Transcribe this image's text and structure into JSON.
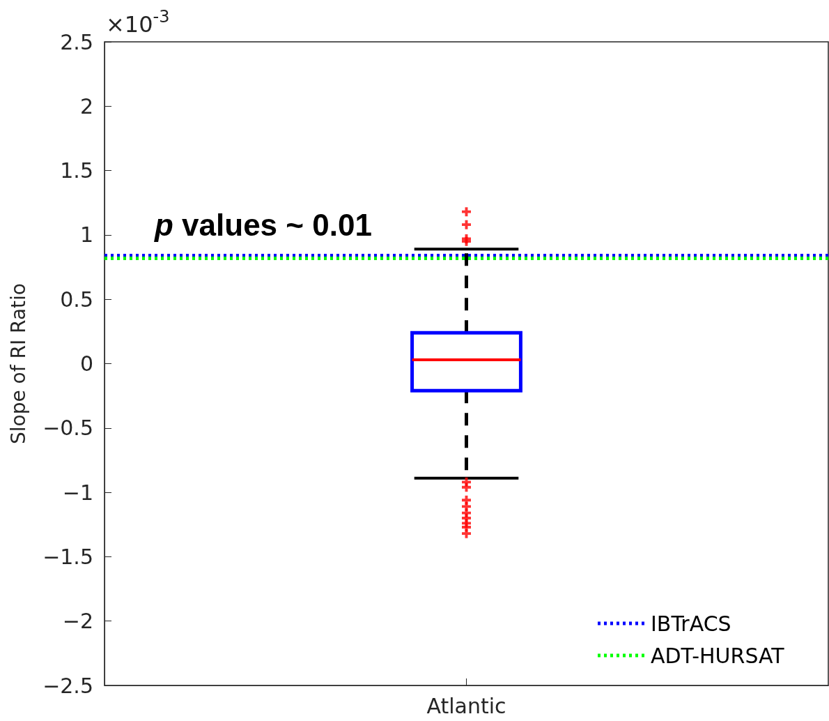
{
  "chart_data": {
    "type": "box",
    "ylabel": "Slope of RI Ratio",
    "categories": [
      "Atlantic"
    ],
    "series": [
      {
        "color": "#0000ff",
        "boxes": [
          {
            "low": -0.89,
            "q1": -0.21,
            "median": 0.03,
            "q3": 0.24,
            "high": 0.89,
            "outliers": [
              1.18,
              1.08,
              0.97,
              0.95,
              -0.92,
              -0.96,
              -1.06,
              -1.11,
              -1.16,
              -1.2,
              -1.24,
              -1.27,
              -1.32
            ]
          }
        ]
      }
    ],
    "ylim": [
      -2.5,
      2.5
    ],
    "yticks": [
      -2.5,
      -2,
      -1.5,
      -1,
      -0.5,
      0,
      0.5,
      1,
      1.5,
      2,
      2.5
    ],
    "ref_lines": [
      {
        "axis": "y",
        "value": 0.84,
        "label": "IBTrACS",
        "color": "#0000ff",
        "line_style": "dotted"
      },
      {
        "axis": "y",
        "value": 0.82,
        "label": "ADT-HURSAT",
        "color": "#00ff00",
        "line_style": "dotted"
      }
    ],
    "annotations": [
      "×10$^{-3}$",
      "p values ~ 0.01"
    ],
    "grid": false,
    "legend": "bottom right",
    "marker": "cross"
  }
}
